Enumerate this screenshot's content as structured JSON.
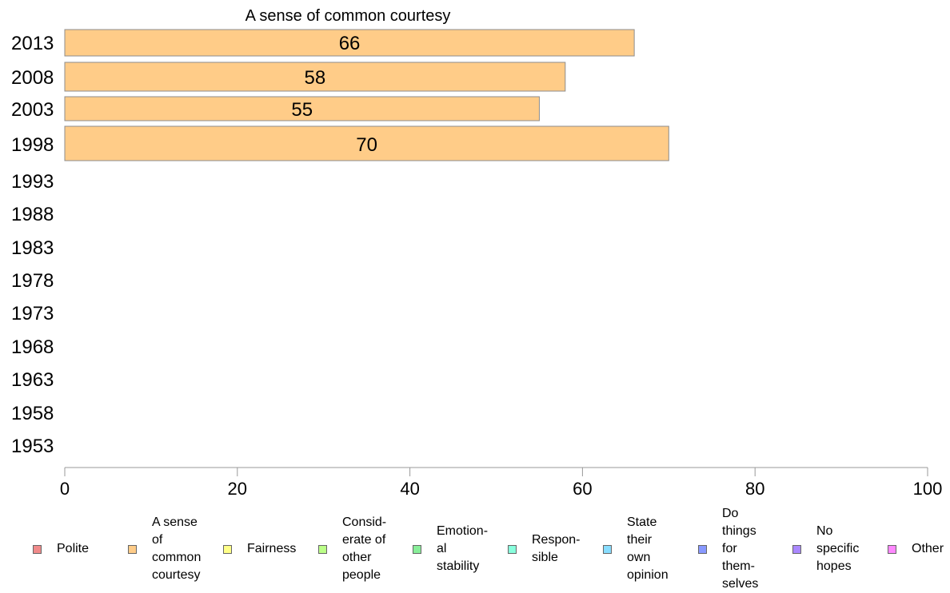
{
  "chart_data": {
    "type": "bar",
    "orientation": "horizontal",
    "title": "A sense of common courtesy",
    "categories": [
      "2013",
      "2008",
      "2003",
      "1998",
      "1993",
      "1988",
      "1983",
      "1978",
      "1973",
      "1968",
      "1963",
      "1958",
      "1953"
    ],
    "series": [
      {
        "name": "A sense of common courtesy",
        "values": [
          66,
          58,
          55,
          70,
          null,
          null,
          null,
          null,
          null,
          null,
          null,
          null,
          null
        ]
      }
    ],
    "data_labels": [
      "66",
      "58",
      "55",
      "70"
    ],
    "xlim": [
      0,
      100
    ],
    "xticks": [
      0,
      20,
      40,
      60,
      80,
      100
    ],
    "xtick_labels": [
      "0",
      "20",
      "40",
      "60",
      "80",
      "100"
    ],
    "grid": false,
    "legend_position": "bottom",
    "bar_color": "#ffcc88",
    "bar_edge_color": "#8c8c8c"
  },
  "legend": [
    {
      "label": "Polite",
      "color": "#f08a8a"
    },
    {
      "label": "A sense\nof\ncommon\ncourtesy",
      "color": "#ffcc88"
    },
    {
      "label": "Fairness",
      "color": "#ffff88"
    },
    {
      "label": "Consid-\nerate of\nother\npeople",
      "color": "#bbff88"
    },
    {
      "label": "Emotion-\nal\nstability",
      "color": "#88ee99"
    },
    {
      "label": "Respon-\nsible",
      "color": "#88ffdd"
    },
    {
      "label": "State\ntheir\nown\nopinion",
      "color": "#88ddff"
    },
    {
      "label": "Do\nthings\nfor\nthem-\nselves",
      "color": "#8899ff"
    },
    {
      "label": "No\nspecific\nhopes",
      "color": "#aa88ff"
    },
    {
      "label": "Other",
      "color": "#ff88ff"
    }
  ]
}
